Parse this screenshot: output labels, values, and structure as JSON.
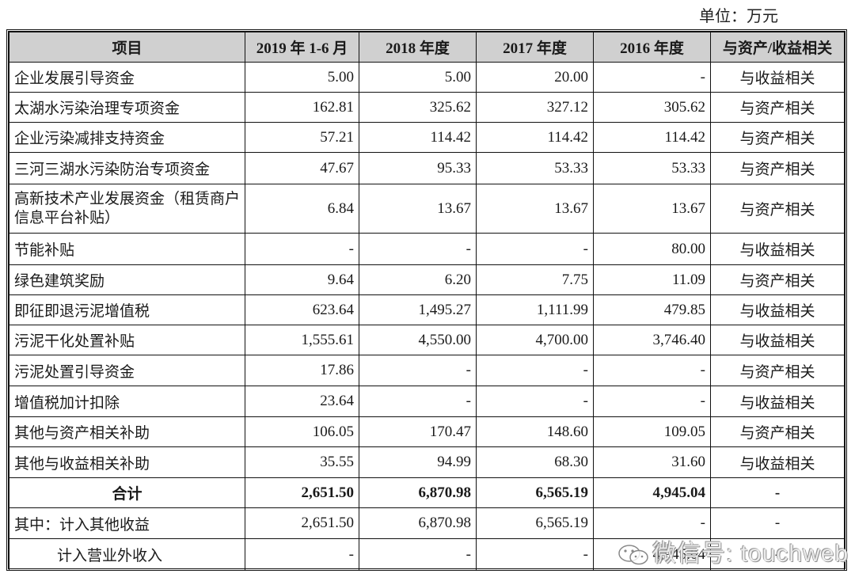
{
  "unit_label": "单位：万元",
  "table": {
    "headers": [
      "项目",
      "2019 年 1-6 月",
      "2018 年度",
      "2017 年度",
      "2016 年度",
      "与资产/收益相关"
    ],
    "rows": [
      {
        "name": "企业发展引导资金",
        "v2019h1": "5.00",
        "v2018": "5.00",
        "v2017": "20.00",
        "v2016": "-",
        "relation": "与收益相关"
      },
      {
        "name": "太湖水污染治理专项资金",
        "v2019h1": "162.81",
        "v2018": "325.62",
        "v2017": "327.12",
        "v2016": "305.62",
        "relation": "与资产相关"
      },
      {
        "name": "企业污染减排支持资金",
        "v2019h1": "57.21",
        "v2018": "114.42",
        "v2017": "114.42",
        "v2016": "114.42",
        "relation": "与资产相关"
      },
      {
        "name": "三河三湖水污染防治专项资金",
        "v2019h1": "47.67",
        "v2018": "95.33",
        "v2017": "53.33",
        "v2016": "53.33",
        "relation": "与资产相关"
      },
      {
        "name": "高新技术产业发展资金（租赁商户信息平台补贴）",
        "v2019h1": "6.84",
        "v2018": "13.67",
        "v2017": "13.67",
        "v2016": "13.67",
        "relation": "与资产相关"
      },
      {
        "name": "节能补贴",
        "v2019h1": "-",
        "v2018": "-",
        "v2017": "-",
        "v2016": "80.00",
        "relation": "与收益相关"
      },
      {
        "name": "绿色建筑奖励",
        "v2019h1": "9.64",
        "v2018": "6.20",
        "v2017": "7.75",
        "v2016": "11.09",
        "relation": "与资产相关"
      },
      {
        "name": "即征即退污泥增值税",
        "v2019h1": "623.64",
        "v2018": "1,495.27",
        "v2017": "1,111.99",
        "v2016": "479.85",
        "relation": "与收益相关"
      },
      {
        "name": "污泥干化处置补贴",
        "v2019h1": "1,555.61",
        "v2018": "4,550.00",
        "v2017": "4,700.00",
        "v2016": "3,746.40",
        "relation": "与收益相关"
      },
      {
        "name": "污泥处置引导资金",
        "v2019h1": "17.86",
        "v2018": "-",
        "v2017": "-",
        "v2016": "-",
        "relation": "与资产相关"
      },
      {
        "name": "增值税加计扣除",
        "v2019h1": "23.64",
        "v2018": "-",
        "v2017": "-",
        "v2016": "-",
        "relation": "与收益相关"
      },
      {
        "name": "其他与资产相关补助",
        "v2019h1": "106.05",
        "v2018": "170.47",
        "v2017": "148.60",
        "v2016": "109.05",
        "relation": "与资产相关"
      },
      {
        "name": "其他与收益相关补助",
        "v2019h1": "35.55",
        "v2018": "94.99",
        "v2017": "68.30",
        "v2016": "31.60",
        "relation": "与收益相关"
      }
    ],
    "total": {
      "name": "合计",
      "v2019h1": "2,651.50",
      "v2018": "6,870.98",
      "v2017": "6,565.19",
      "v2016": "4,945.04",
      "relation": "-"
    },
    "sub_rows": [
      {
        "name": "其中：计入其他收益",
        "v2019h1": "2,651.50",
        "v2018": "6,870.98",
        "v2017": "6,565.19",
        "v2016": "-",
        "relation": "-"
      },
      {
        "name": "计入营业外收入",
        "v2019h1": "-",
        "v2018": "-",
        "v2017": "-",
        "v2016": "4,945.04",
        "relation": "-"
      }
    ]
  },
  "watermark": {
    "text": "微信号: touchweb",
    "icon": "wechat-icon"
  }
}
